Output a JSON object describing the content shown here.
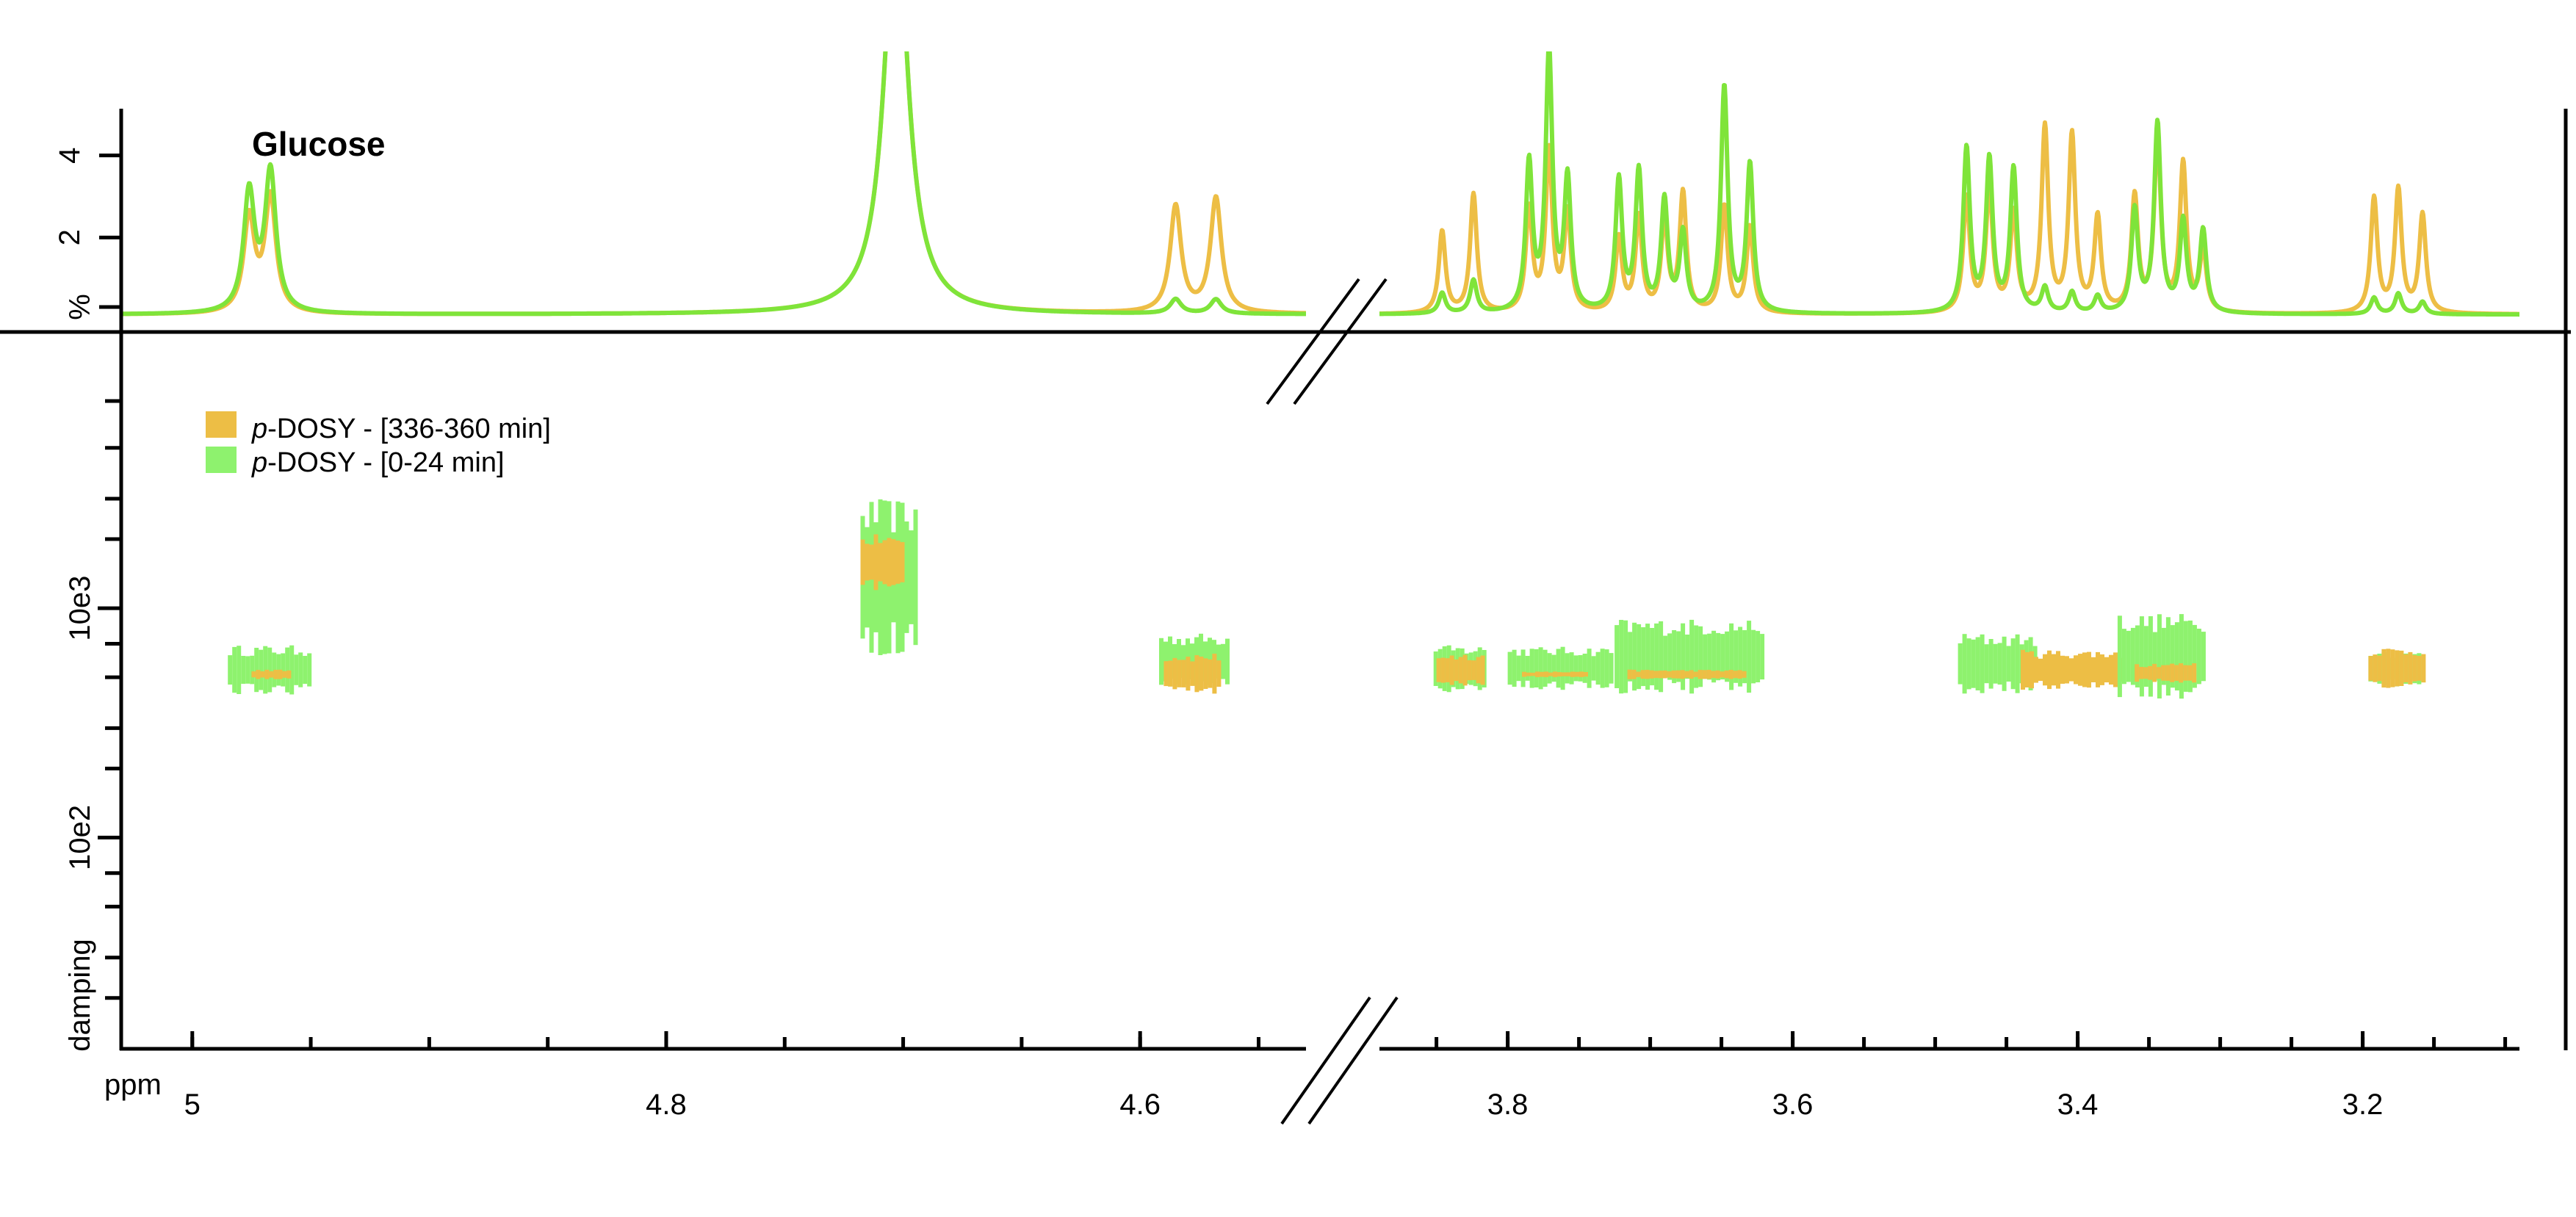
{
  "chart_data": {
    "type": "heatmap",
    "title": "Glucose",
    "xlabel": "ppm",
    "colors": {
      "late": "#EDBE45",
      "early": "#8EF26E",
      "early_line": "#7FE43A"
    },
    "x_segments": [
      {
        "range": [
          5.03,
          4.53
        ],
        "ticks": [
          5,
          4.8,
          4.6
        ],
        "tick_labels": [
          "5",
          "4.8",
          "4.6"
        ]
      },
      {
        "range": [
          3.89,
          3.09
        ],
        "ticks": [
          3.8,
          3.6,
          3.4,
          3.2
        ],
        "tick_labels": [
          "3.8",
          "3.6",
          "3.4",
          "3.2"
        ]
      }
    ],
    "spectrum": {
      "ylabel": "%",
      "ylim": [
        0,
        6
      ],
      "ticks": [
        2,
        4
      ],
      "tick_labels": [
        "2",
        "4"
      ],
      "peaks": [
        {
          "ppm": 4.976,
          "early": 2.9,
          "late": 2.3
        },
        {
          "ppm": 4.967,
          "early": 3.4,
          "late": 2.8
        },
        {
          "ppm": 4.703,
          "early": 10,
          "late": 10
        },
        {
          "ppm": 4.585,
          "early": 0.35,
          "late": 2.6
        },
        {
          "ppm": 4.568,
          "early": 0.35,
          "late": 2.8
        },
        {
          "ppm": 3.846,
          "early": 0.5,
          "late": 2.0
        },
        {
          "ppm": 3.824,
          "early": 0.8,
          "late": 2.9
        },
        {
          "ppm": 3.785,
          "early": 3.6,
          "late": 2.5
        },
        {
          "ppm": 3.771,
          "early": 6.3,
          "late": 3.9
        },
        {
          "ppm": 3.758,
          "early": 3.2,
          "late": 2.4
        },
        {
          "ppm": 3.722,
          "early": 3.2,
          "late": 1.8
        },
        {
          "ppm": 3.708,
          "early": 3.4,
          "late": 2.3
        },
        {
          "ppm": 3.69,
          "early": 2.7,
          "late": 2.2
        },
        {
          "ppm": 3.677,
          "early": 1.9,
          "late": 2.9
        },
        {
          "ppm": 3.648,
          "early": 5.5,
          "late": 2.6
        },
        {
          "ppm": 3.63,
          "early": 3.6,
          "late": 2.1
        },
        {
          "ppm": 3.478,
          "early": 4.0,
          "late": 2.8
        },
        {
          "ppm": 3.462,
          "early": 3.7,
          "late": 3.0
        },
        {
          "ppm": 3.445,
          "early": 3.5,
          "late": 2.4
        },
        {
          "ppm": 3.423,
          "early": 0.6,
          "late": 4.5
        },
        {
          "ppm": 3.404,
          "early": 0.5,
          "late": 4.3
        },
        {
          "ppm": 3.386,
          "early": 0.4,
          "late": 2.3
        },
        {
          "ppm": 3.36,
          "early": 2.5,
          "late": 2.8
        },
        {
          "ppm": 3.344,
          "early": 4.6,
          "late": 4.2
        },
        {
          "ppm": 3.326,
          "early": 2.2,
          "late": 3.6
        },
        {
          "ppm": 3.312,
          "early": 2.0,
          "late": 1.5
        },
        {
          "ppm": 3.192,
          "early": 0.4,
          "late": 2.8
        },
        {
          "ppm": 3.175,
          "early": 0.5,
          "late": 3.0
        },
        {
          "ppm": 3.158,
          "early": 0.3,
          "late": 2.4
        }
      ]
    },
    "dosy": {
      "ylabel": "damping",
      "scale": "log",
      "ylim": [
        12,
        16000
      ],
      "ticks": [
        1000,
        100
      ],
      "tick_labels": [
        "10e3",
        "10e2"
      ],
      "minor_ticks": [
        8000,
        5000,
        3000,
        2000,
        700,
        500,
        300,
        200,
        70,
        50,
        30,
        20
      ],
      "series": [
        {
          "name": "p-DOSY - [336-360 min]",
          "key": "late"
        },
        {
          "name": "p-DOSY - [0-24 min]",
          "key": "early"
        }
      ],
      "legend_prefix": "p",
      "legend_suffixes": [
        "-DOSY - [336-360 min]",
        "-DOSY - [0-24 min]"
      ],
      "clusters": [
        {
          "series": "early",
          "x": [
            4.985,
            4.951
          ],
          "d": [
            420,
            690
          ]
        },
        {
          "series": "late",
          "x": [
            4.975,
            4.96
          ],
          "d": [
            490,
            540
          ]
        },
        {
          "series": "early",
          "x": [
            4.718,
            4.694
          ],
          "d": [
            620,
            3000
          ]
        },
        {
          "series": "late",
          "x": [
            4.718,
            4.7
          ],
          "d": [
            1200,
            2100
          ]
        },
        {
          "series": "early",
          "x": [
            4.592,
            4.563
          ],
          "d": [
            440,
            780
          ]
        },
        {
          "series": "late",
          "x": [
            4.59,
            4.566
          ],
          "d": [
            420,
            640
          ]
        },
        {
          "series": "early",
          "x": [
            3.852,
            3.815
          ],
          "d": [
            430,
            690
          ]
        },
        {
          "series": "late",
          "x": [
            3.85,
            3.817
          ],
          "d": [
            450,
            640
          ]
        },
        {
          "series": "early",
          "x": [
            3.8,
            3.727
          ],
          "d": [
            440,
            680
          ]
        },
        {
          "series": "late",
          "x": [
            3.79,
            3.745
          ],
          "d": [
            500,
            530
          ]
        },
        {
          "series": "early",
          "x": [
            3.725,
            3.62
          ],
          "d": [
            420,
            900
          ]
        },
        {
          "series": "late",
          "x": [
            3.716,
            3.635
          ],
          "d": [
            490,
            540
          ]
        },
        {
          "series": "early",
          "x": [
            3.484,
            3.43
          ],
          "d": [
            420,
            780
          ]
        },
        {
          "series": "late",
          "x": [
            3.44,
            3.37
          ],
          "d": [
            440,
            660
          ]
        },
        {
          "series": "early",
          "x": [
            3.372,
            3.312
          ],
          "d": [
            400,
            950
          ]
        },
        {
          "series": "late",
          "x": [
            3.36,
            3.318
          ],
          "d": [
            470,
            580
          ]
        },
        {
          "series": "early",
          "x": [
            3.196,
            3.16
          ],
          "d": [
            450,
            660
          ]
        },
        {
          "series": "late",
          "x": [
            3.196,
            3.156
          ],
          "d": [
            440,
            680
          ]
        }
      ]
    }
  }
}
